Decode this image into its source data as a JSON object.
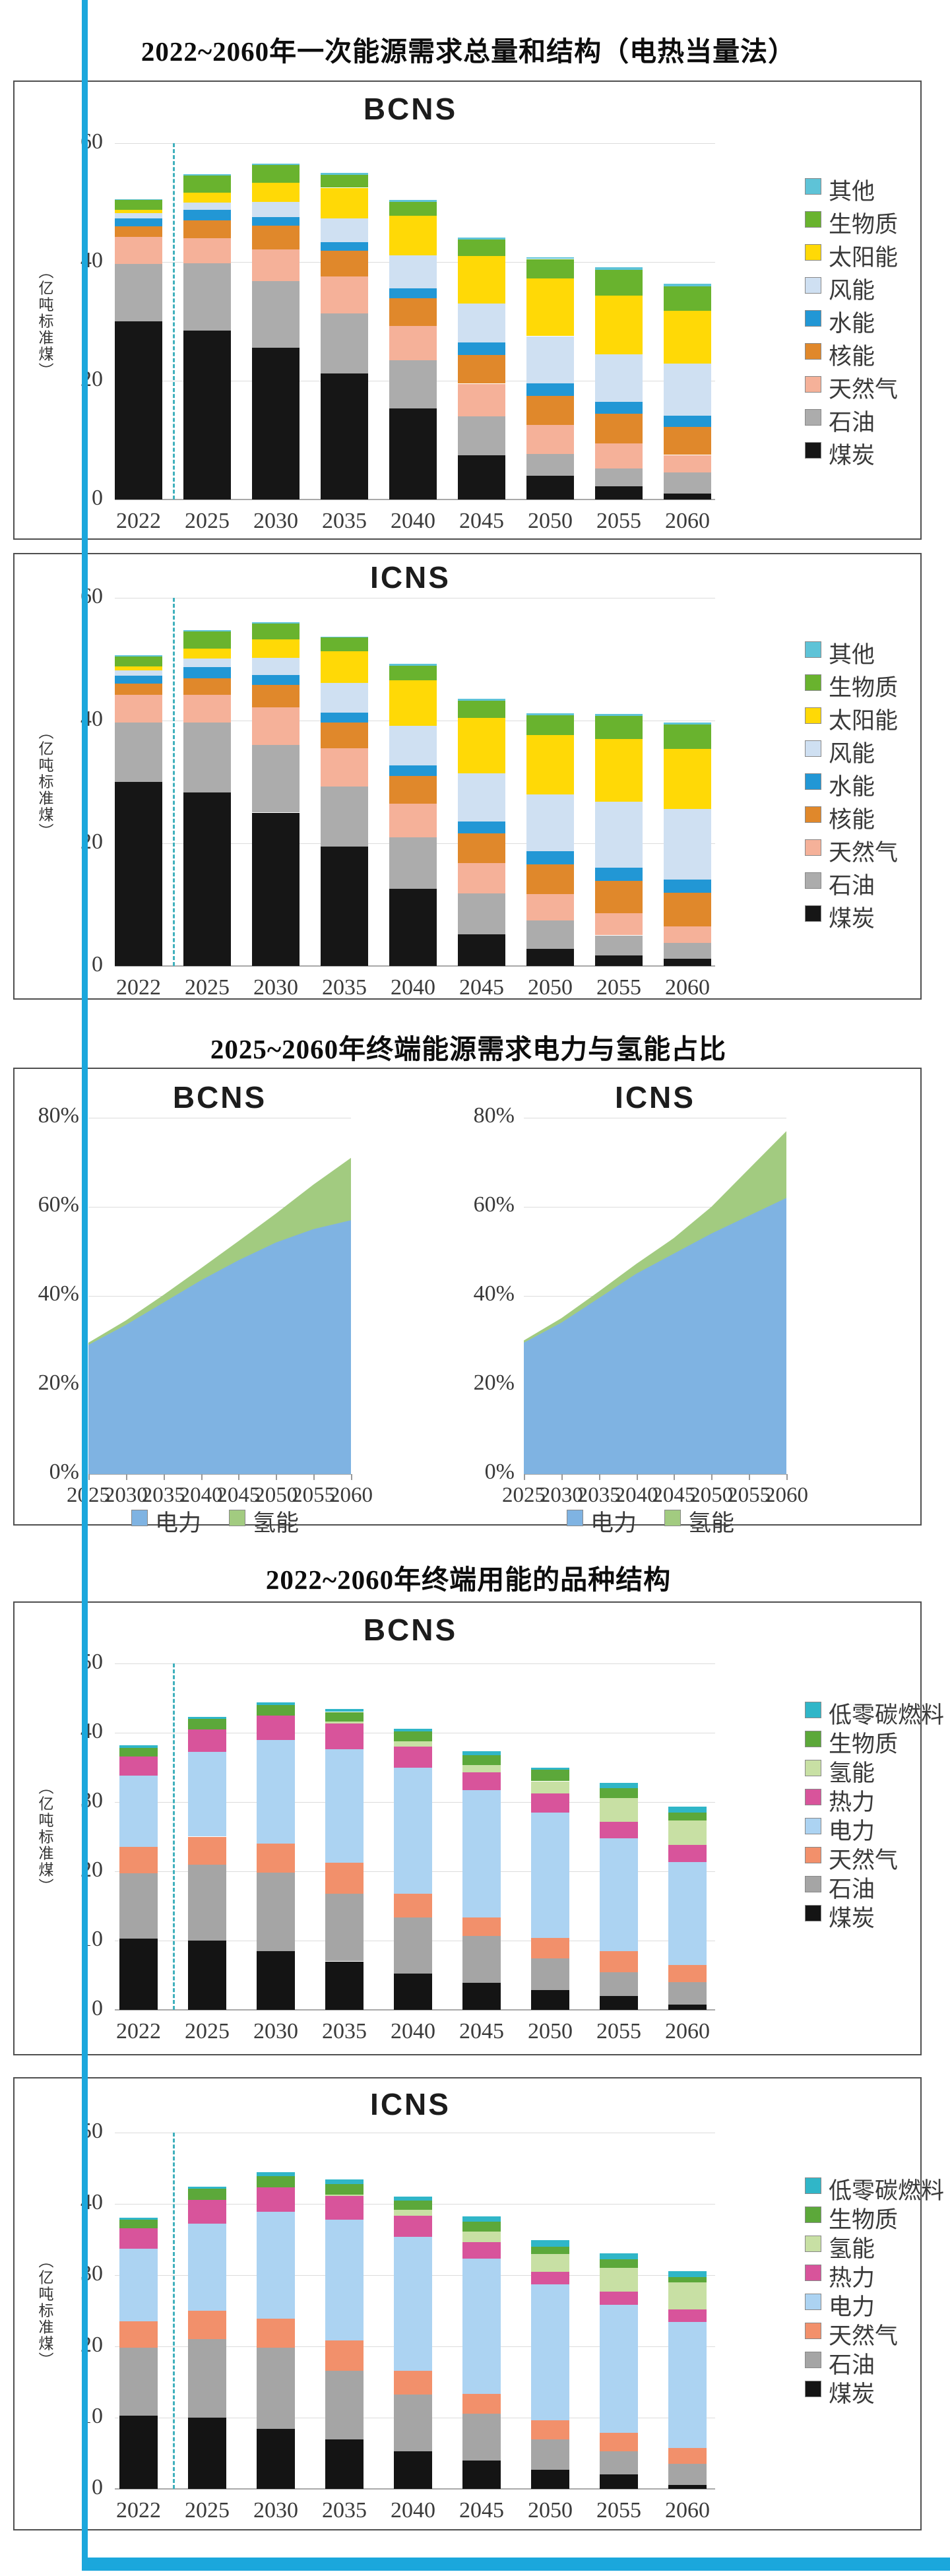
{
  "page": {
    "background": "#ffffff",
    "accent_color": "#1BA7DC"
  },
  "section_titles": [
    "2022~2060年一次能源需求总量和结构（电热当量法）",
    "2025~2060年终端能源需求电力与氢能占比",
    "2022~2060年终端用能的品种结构"
  ],
  "chart_data": [
    {
      "id": "bcns-primary",
      "type": "bar",
      "stacked": true,
      "title": "BCNS",
      "ylabel": "（亿吨标准煤）",
      "ylim": [
        0,
        60
      ],
      "yticks": [
        0,
        20,
        40,
        60
      ],
      "grid": true,
      "legend_position": "right",
      "categories": [
        "2022",
        "2025",
        "2030",
        "2035",
        "2040",
        "2045",
        "2050",
        "2055",
        "2060"
      ],
      "series": [
        {
          "name": "煤炭",
          "color": "#161616",
          "values": [
            30.0,
            28.4,
            25.6,
            21.2,
            15.3,
            7.4,
            4.0,
            2.2,
            1.0
          ]
        },
        {
          "name": "石油",
          "color": "#ACACAC",
          "values": [
            9.7,
            11.4,
            11.2,
            10.1,
            8.1,
            6.6,
            3.7,
            3.0,
            3.6
          ]
        },
        {
          "name": "天然气",
          "color": "#F5B199",
          "values": [
            4.5,
            4.2,
            5.3,
            6.3,
            5.8,
            5.5,
            4.9,
            4.2,
            2.9
          ]
        },
        {
          "name": "核能",
          "color": "#E0882B",
          "values": [
            1.8,
            3.0,
            4.0,
            4.3,
            4.7,
            4.8,
            4.8,
            5.0,
            4.7
          ]
        },
        {
          "name": "水能",
          "color": "#2297D5",
          "values": [
            1.3,
            1.8,
            1.5,
            1.4,
            1.7,
            2.2,
            2.2,
            2.0,
            1.9
          ]
        },
        {
          "name": "风能",
          "color": "#CFE0F2",
          "values": [
            0.9,
            1.2,
            2.5,
            4.0,
            5.5,
            6.5,
            7.9,
            8.0,
            8.8
          ]
        },
        {
          "name": "太阳能",
          "color": "#FFD906",
          "values": [
            0.6,
            1.7,
            3.2,
            5.2,
            6.7,
            8.0,
            9.7,
            9.9,
            8.9
          ]
        },
        {
          "name": "生物质",
          "color": "#69B32E",
          "values": [
            1.6,
            2.9,
            3.0,
            2.2,
            2.3,
            2.8,
            3.3,
            4.4,
            4.1
          ]
        },
        {
          "name": "其他",
          "color": "#5EC3D7",
          "values": [
            0.2,
            0.2,
            0.3,
            0.3,
            0.3,
            0.3,
            0.3,
            0.4,
            0.4
          ]
        }
      ]
    },
    {
      "id": "icns-primary",
      "type": "bar",
      "stacked": true,
      "title": "ICNS",
      "ylabel": "（亿吨标准煤）",
      "ylim": [
        0,
        60
      ],
      "yticks": [
        0,
        20,
        40,
        60
      ],
      "grid": true,
      "legend_position": "right",
      "categories": [
        "2022",
        "2025",
        "2030",
        "2035",
        "2040",
        "2045",
        "2050",
        "2055",
        "2060"
      ],
      "series": [
        {
          "name": "煤炭",
          "color": "#161616",
          "values": [
            30.0,
            28.3,
            25.0,
            19.5,
            12.6,
            5.2,
            2.8,
            1.7,
            1.2
          ]
        },
        {
          "name": "石油",
          "color": "#ACACAC",
          "values": [
            9.7,
            11.4,
            11.0,
            9.8,
            8.4,
            6.6,
            4.6,
            3.3,
            2.6
          ]
        },
        {
          "name": "天然气",
          "color": "#F5B199",
          "values": [
            4.5,
            4.5,
            6.2,
            6.2,
            5.5,
            5.0,
            4.3,
            3.6,
            2.6
          ]
        },
        {
          "name": "核能",
          "color": "#E0882B",
          "values": [
            1.8,
            2.7,
            3.6,
            4.2,
            4.5,
            4.8,
            4.9,
            5.3,
            5.5
          ]
        },
        {
          "name": "水能",
          "color": "#2297D5",
          "values": [
            1.3,
            1.8,
            1.6,
            1.6,
            1.7,
            2.0,
            2.1,
            2.1,
            2.2
          ]
        },
        {
          "name": "风能",
          "color": "#CFE0F2",
          "values": [
            0.9,
            1.4,
            2.8,
            4.8,
            6.4,
            7.8,
            9.3,
            10.8,
            11.5
          ]
        },
        {
          "name": "太阳能",
          "color": "#FFD906",
          "values": [
            0.6,
            1.6,
            3.0,
            5.2,
            7.5,
            9.0,
            9.6,
            10.2,
            9.8
          ]
        },
        {
          "name": "生物质",
          "color": "#69B32E",
          "values": [
            1.6,
            2.8,
            2.6,
            2.2,
            2.3,
            2.8,
            3.3,
            3.8,
            4.0
          ]
        },
        {
          "name": "其他",
          "color": "#5EC3D7",
          "values": [
            0.2,
            0.2,
            0.2,
            0.2,
            0.3,
            0.3,
            0.3,
            0.3,
            0.3
          ]
        }
      ]
    },
    {
      "id": "bcns-elec-hydrogen",
      "type": "area",
      "stacked": true,
      "title": "BCNS",
      "ylim": [
        0,
        80
      ],
      "ytick_labels": [
        "0%",
        "20%",
        "40%",
        "60%",
        "80%"
      ],
      "grid": true,
      "legend_position": "bottom",
      "x": [
        "2025",
        "2030",
        "2035",
        "2040",
        "2045",
        "2050",
        "2055",
        "2060"
      ],
      "series": [
        {
          "name": "电力",
          "color": "#7FB3E2",
          "values": [
            29,
            33.5,
            38.5,
            43.5,
            48,
            52,
            55,
            57
          ]
        },
        {
          "name": "氢能",
          "color": "#A2CB80",
          "values": [
            0.5,
            1.0,
            1.7,
            2.7,
            4.3,
            6.5,
            10,
            14
          ]
        }
      ]
    },
    {
      "id": "icns-elec-hydrogen",
      "type": "area",
      "stacked": true,
      "title": "ICNS",
      "ylim": [
        0,
        80
      ],
      "ytick_labels": [
        "0%",
        "20%",
        "40%",
        "60%",
        "80%"
      ],
      "grid": true,
      "legend_position": "bottom",
      "x": [
        "2025",
        "2030",
        "2035",
        "2040",
        "2045",
        "2050",
        "2055",
        "2060"
      ],
      "series": [
        {
          "name": "电力",
          "color": "#7FB3E2",
          "values": [
            29.5,
            34,
            39.5,
            45,
            49.5,
            54,
            58,
            62
          ]
        },
        {
          "name": "氢能",
          "color": "#A2CB80",
          "values": [
            0.5,
            1.0,
            1.5,
            2.2,
            3.5,
            6,
            10.5,
            15
          ]
        }
      ]
    },
    {
      "id": "bcns-enduse",
      "type": "bar",
      "stacked": true,
      "title": "BCNS",
      "ylabel": "（亿吨标准煤）",
      "ylim": [
        0,
        50
      ],
      "yticks": [
        0,
        10,
        20,
        30,
        40,
        50
      ],
      "grid": true,
      "legend_position": "right",
      "categories": [
        "2022",
        "2025",
        "2030",
        "2035",
        "2040",
        "2045",
        "2050",
        "2055",
        "2060"
      ],
      "series": [
        {
          "name": "煤炭",
          "color": "#141414",
          "values": [
            10.3,
            10.0,
            8.5,
            7.0,
            5.2,
            3.9,
            2.9,
            2.0,
            0.8
          ]
        },
        {
          "name": "石油",
          "color": "#A5A5A5",
          "values": [
            9.4,
            11.0,
            11.3,
            9.8,
            8.1,
            6.8,
            4.5,
            3.4,
            3.2
          ]
        },
        {
          "name": "天然气",
          "color": "#F2906B",
          "values": [
            3.8,
            4.0,
            4.2,
            4.4,
            3.5,
            2.6,
            3.0,
            3.1,
            2.5
          ]
        },
        {
          "name": "电力",
          "color": "#ACD3F2",
          "values": [
            10.3,
            12.2,
            15.0,
            16.4,
            18.2,
            18.4,
            18.1,
            16.3,
            14.8
          ]
        },
        {
          "name": "热力",
          "color": "#D8549B",
          "values": [
            2.8,
            3.3,
            3.5,
            3.7,
            3.0,
            2.6,
            2.7,
            2.3,
            2.5
          ]
        },
        {
          "name": "氢能",
          "color": "#C8E0A4",
          "values": [
            0,
            0,
            0,
            0.3,
            0.8,
            1.0,
            1.8,
            3.5,
            3.5
          ]
        },
        {
          "name": "生物质",
          "color": "#5CA83A",
          "values": [
            1.2,
            1.5,
            1.5,
            1.4,
            1.4,
            1.5,
            1.7,
            1.4,
            1.2
          ]
        },
        {
          "name": "低零碳燃料",
          "color": "#30B6C8",
          "values": [
            0.4,
            0.3,
            0.4,
            0.4,
            0.4,
            0.5,
            0.3,
            0.8,
            0.8
          ]
        }
      ]
    },
    {
      "id": "icns-enduse",
      "type": "bar",
      "stacked": true,
      "title": "ICNS",
      "ylabel": "（亿吨标准煤）",
      "ylim": [
        0,
        50
      ],
      "yticks": [
        0,
        10,
        20,
        30,
        40,
        50
      ],
      "grid": true,
      "legend_position": "right",
      "categories": [
        "2022",
        "2025",
        "2030",
        "2035",
        "2040",
        "2045",
        "2050",
        "2055",
        "2060"
      ],
      "series": [
        {
          "name": "煤炭",
          "color": "#141414",
          "values": [
            10.3,
            10.0,
            8.4,
            6.9,
            5.3,
            4.0,
            2.7,
            2.0,
            0.6
          ]
        },
        {
          "name": "石油",
          "color": "#A5A5A5",
          "values": [
            9.5,
            11.0,
            11.4,
            9.7,
            7.9,
            6.6,
            4.2,
            3.3,
            2.9
          ]
        },
        {
          "name": "天然气",
          "color": "#F2906B",
          "values": [
            3.7,
            4.0,
            4.1,
            4.2,
            3.4,
            2.7,
            2.7,
            2.6,
            2.2
          ]
        },
        {
          "name": "电力",
          "color": "#ACD3F2",
          "values": [
            10.2,
            12.2,
            15.0,
            17.0,
            18.8,
            19.0,
            19.1,
            17.9,
            17.7
          ]
        },
        {
          "name": "热力",
          "color": "#D8549B",
          "values": [
            2.9,
            3.4,
            3.4,
            3.3,
            2.9,
            2.3,
            1.8,
            1.9,
            1.8
          ]
        },
        {
          "name": "氢能",
          "color": "#C8E0A4",
          "values": [
            0,
            0,
            0,
            0.2,
            0.9,
            1.5,
            2.5,
            3.3,
            3.8
          ]
        },
        {
          "name": "生物质",
          "color": "#5CA83A",
          "values": [
            1.2,
            1.5,
            1.6,
            1.5,
            1.3,
            1.4,
            1.0,
            1.2,
            0.7
          ]
        },
        {
          "name": "低零碳燃料",
          "color": "#30B6C8",
          "values": [
            0.3,
            0.3,
            0.5,
            0.6,
            0.5,
            0.7,
            0.9,
            0.9,
            0.9
          ]
        }
      ]
    }
  ],
  "divider": {
    "style": "dashed",
    "color": "#3FB0BC",
    "after_category": "2022"
  }
}
